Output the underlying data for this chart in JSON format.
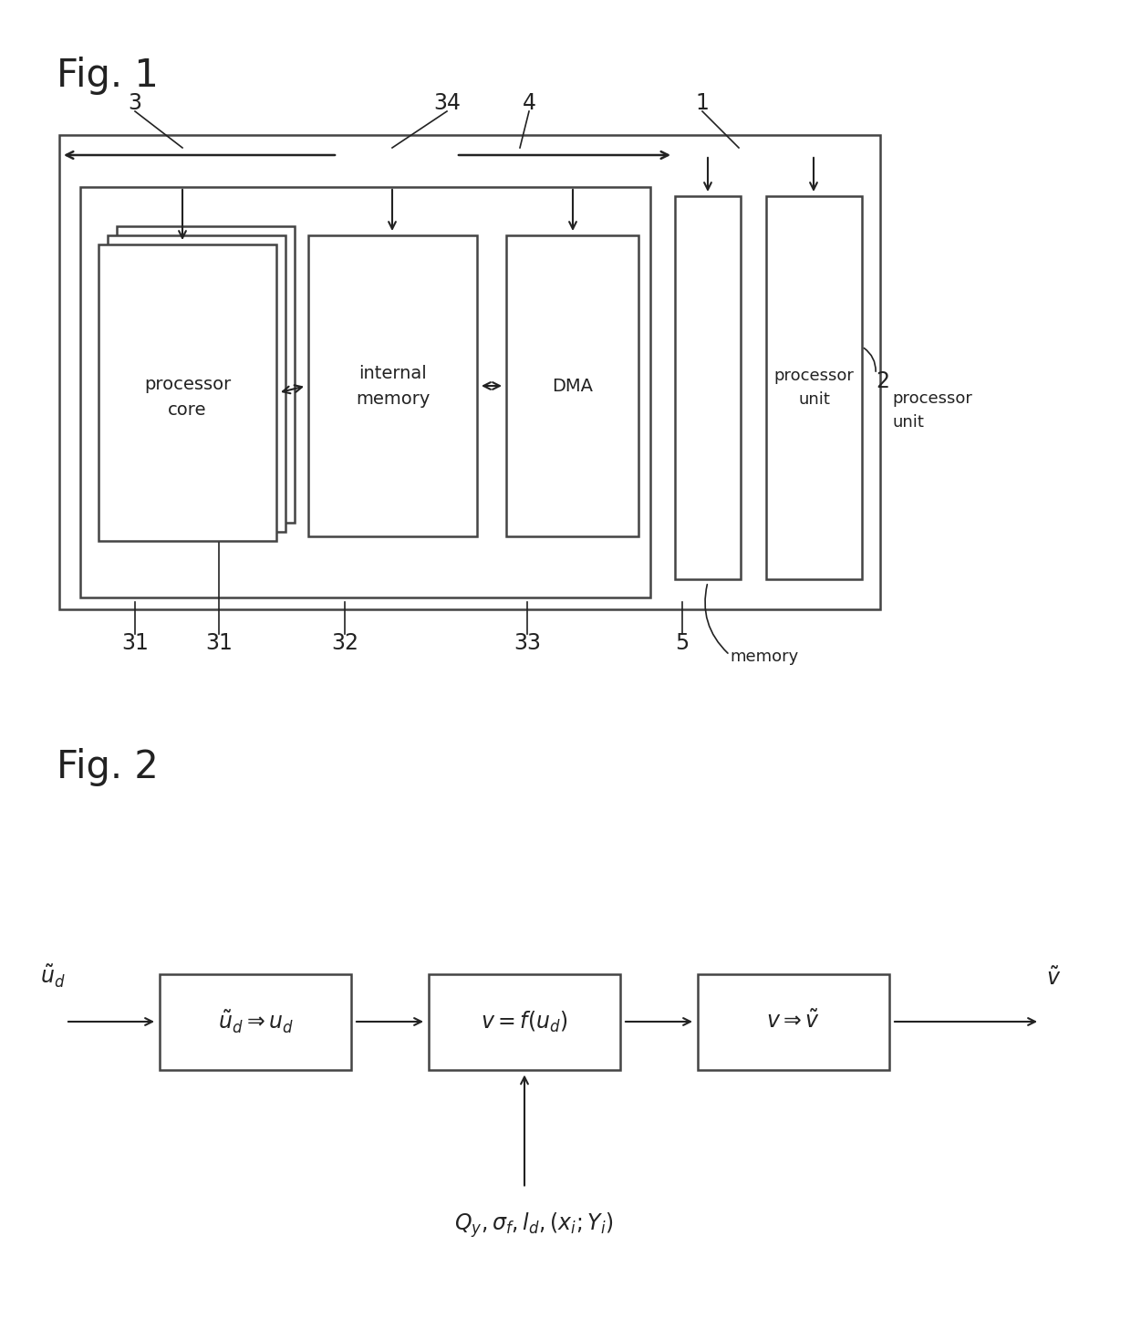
{
  "fig1_label": "Fig. 1",
  "fig2_label": "Fig. 2",
  "bg_color": "#ffffff",
  "line_color": "#222222",
  "box_line_color": "#444444",
  "fig2_box1_label": "$\\tilde{u}_d \\Rightarrow u_d$",
  "fig2_box2_label": "$v = f(u_d)$",
  "fig2_box3_label": "$v \\Rightarrow \\tilde{v}$",
  "fig2_input_label": "$\\tilde{u}_d$",
  "fig2_output_label": "$\\tilde{v}$",
  "fig2_bottom_label": "$Q_y, \\sigma_f, l_d, (x_i; Y_i)$",
  "processor_core_label": "processor\ncore",
  "internal_memory_label": "internal\nmemory",
  "dma_label": "DMA",
  "processor_unit_label": "processor\nunit",
  "memory_label": "memory"
}
